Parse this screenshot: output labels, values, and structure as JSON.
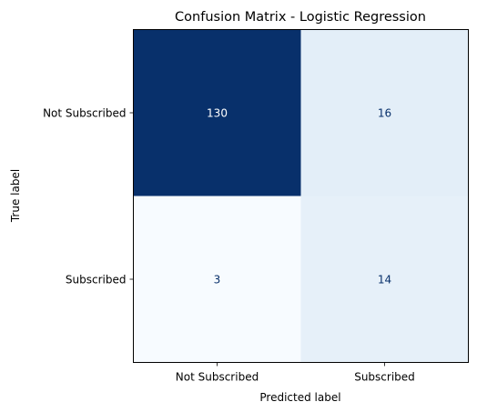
{
  "chart_data": {
    "type": "heatmap",
    "title": "Confusion Matrix - Logistic Regression",
    "xlabel": "Predicted label",
    "ylabel": "True label",
    "x_categories": [
      "Not Subscribed",
      "Subscribed"
    ],
    "y_categories": [
      "Not Subscribed",
      "Subscribed"
    ],
    "values": [
      [
        130,
        16
      ],
      [
        3,
        14
      ]
    ],
    "colormap": "Blues",
    "colorbar": false,
    "colors": {
      "low": "#f7fbff",
      "high": "#08306b",
      "text_on_dark": "#ffffff",
      "text_on_light": "#08306b"
    }
  }
}
